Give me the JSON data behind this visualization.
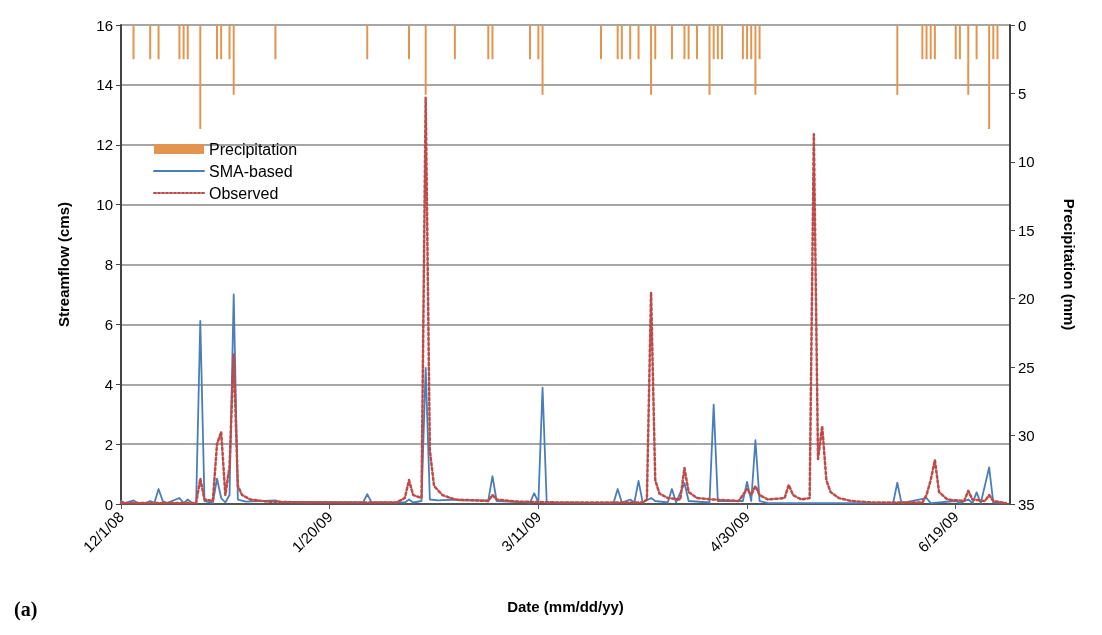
{
  "chart_data": {
    "type": "line",
    "xlabel": "Date (mm/dd/yy)",
    "ylabel": "Streamflow (cms)",
    "y2label": "Precipitation (mm)",
    "annotations": [
      "(a)"
    ],
    "xlim": [
      "2008-12-01",
      "2009-07-02"
    ],
    "xticks": [
      {
        "value": "2008-12-01",
        "label": "12/1/08"
      },
      {
        "value": "2009-01-20",
        "label": "1/20/09"
      },
      {
        "value": "2009-03-11",
        "label": "3/11/09"
      },
      {
        "value": "2009-04-30",
        "label": "4/30/09"
      },
      {
        "value": "2009-06-19",
        "label": "6/19/09"
      }
    ],
    "ylim": [
      0,
      16
    ],
    "yticks": [
      0,
      2,
      4,
      6,
      8,
      10,
      12,
      14,
      16
    ],
    "y2lim": [
      35,
      0
    ],
    "y2ticks": [
      0,
      5,
      10,
      15,
      20,
      25,
      30,
      35
    ],
    "grid": "y",
    "legend": "top left",
    "marker": "none",
    "series": [
      {
        "name": "Precipitation",
        "type": "bar",
        "axis": "y2",
        "color": "#e3954f",
        "x": [
          "2008-12-04",
          "2008-12-08",
          "2008-12-10",
          "2008-12-15",
          "2008-12-16",
          "2008-12-17",
          "2008-12-20",
          "2008-12-24",
          "2008-12-25",
          "2008-12-27",
          "2008-12-28",
          "2009-01-07",
          "2009-01-29",
          "2009-02-08",
          "2009-02-12",
          "2009-02-19",
          "2009-02-27",
          "2009-02-28",
          "2009-03-09",
          "2009-03-11",
          "2009-03-12",
          "2009-03-26",
          "2009-03-30",
          "2009-03-31",
          "2009-04-02",
          "2009-04-04",
          "2009-04-07",
          "2009-04-08",
          "2009-04-12",
          "2009-04-15",
          "2009-04-16",
          "2009-04-18",
          "2009-04-21",
          "2009-04-22",
          "2009-04-23",
          "2009-04-24",
          "2009-04-29",
          "2009-04-30",
          "2009-05-01",
          "2009-05-02",
          "2009-05-03",
          "2009-06-05",
          "2009-06-11",
          "2009-06-12",
          "2009-06-13",
          "2009-06-14",
          "2009-06-19",
          "2009-06-20",
          "2009-06-22",
          "2009-06-24",
          "2009-06-27",
          "2009-06-28",
          "2009-06-29"
        ],
        "values": [
          2.5,
          2.5,
          2.5,
          2.5,
          2.5,
          2.5,
          7.6,
          2.5,
          2.5,
          2.5,
          5.1,
          2.5,
          2.5,
          2.5,
          5.1,
          2.5,
          2.5,
          2.5,
          2.5,
          2.5,
          5.1,
          2.5,
          2.5,
          2.5,
          2.5,
          2.5,
          5.1,
          2.5,
          2.5,
          2.5,
          2.5,
          2.5,
          5.1,
          2.5,
          2.5,
          2.5,
          2.5,
          2.5,
          2.5,
          5.1,
          2.5,
          5.1,
          2.5,
          2.5,
          2.5,
          2.5,
          2.5,
          2.5,
          5.1,
          2.5,
          7.6,
          2.5,
          2.5
        ]
      },
      {
        "name": "SMA-based",
        "color": "#4a7ebb",
        "line_style": "solid",
        "x": [
          "2008-12-01",
          "2008-12-02",
          "2008-12-04",
          "2008-12-05",
          "2008-12-07",
          "2008-12-08",
          "2008-12-09",
          "2008-12-10",
          "2008-12-11",
          "2008-12-12",
          "2008-12-15",
          "2008-12-16",
          "2008-12-17",
          "2008-12-18",
          "2008-12-19",
          "2008-12-20",
          "2008-12-21",
          "2008-12-23",
          "2008-12-24",
          "2008-12-25",
          "2008-12-26",
          "2008-12-27",
          "2008-12-28",
          "2008-12-29",
          "2008-12-31",
          "2009-01-07",
          "2009-01-08",
          "2009-01-28",
          "2009-01-29",
          "2009-01-30",
          "2009-02-07",
          "2009-02-08",
          "2009-02-09",
          "2009-02-11",
          "2009-02-12",
          "2009-02-13",
          "2009-02-15",
          "2009-02-19",
          "2009-02-20",
          "2009-02-27",
          "2009-02-28",
          "2009-03-01",
          "2009-03-09",
          "2009-03-10",
          "2009-03-11",
          "2009-03-12",
          "2009-03-13",
          "2009-03-29",
          "2009-03-30",
          "2009-03-31",
          "2009-04-02",
          "2009-04-03",
          "2009-04-04",
          "2009-04-05",
          "2009-04-07",
          "2009-04-08",
          "2009-04-11",
          "2009-04-12",
          "2009-04-13",
          "2009-04-15",
          "2009-04-16",
          "2009-04-21",
          "2009-04-22",
          "2009-04-23",
          "2009-04-29",
          "2009-04-30",
          "2009-05-01",
          "2009-05-02",
          "2009-05-03",
          "2009-05-05",
          "2009-06-04",
          "2009-06-05",
          "2009-06-06",
          "2009-06-12",
          "2009-06-13",
          "2009-06-19",
          "2009-06-20",
          "2009-06-22",
          "2009-06-23",
          "2009-06-24",
          "2009-06-25",
          "2009-06-27",
          "2009-06-28",
          "2009-07-01"
        ],
        "values": [
          0.1,
          0.03,
          0.12,
          0.03,
          0.03,
          0.1,
          0.03,
          0.5,
          0.1,
          0.03,
          0.2,
          0.03,
          0.15,
          0.03,
          0.03,
          6.12,
          0.1,
          0.03,
          0.85,
          0.2,
          0.05,
          0.3,
          7.0,
          0.15,
          0.08,
          0.12,
          0.08,
          0.05,
          0.33,
          0.06,
          0.05,
          0.15,
          0.05,
          0.1,
          4.55,
          0.15,
          0.12,
          0.15,
          0.12,
          0.12,
          0.93,
          0.1,
          0.05,
          0.36,
          0.05,
          3.89,
          0.05,
          0.03,
          0.5,
          0.05,
          0.15,
          0.05,
          0.77,
          0.05,
          0.2,
          0.1,
          0.05,
          0.5,
          0.05,
          0.7,
          0.1,
          0.05,
          3.32,
          0.1,
          0.1,
          0.74,
          0.1,
          2.13,
          0.1,
          0.03,
          0.03,
          0.71,
          0.03,
          0.2,
          0.03,
          0.1,
          0.03,
          0.15,
          0.03,
          0.39,
          0.03,
          1.22,
          0.05,
          0.03
        ]
      },
      {
        "name": "Observed",
        "color": "#be4b48",
        "line_style": "dotted",
        "x": [
          "2008-12-01",
          "2008-12-19",
          "2008-12-20",
          "2008-12-21",
          "2008-12-23",
          "2008-12-24",
          "2008-12-25",
          "2008-12-26",
          "2008-12-27",
          "2008-12-28",
          "2008-12-29",
          "2008-12-30",
          "2009-01-01",
          "2009-01-05",
          "2009-01-15",
          "2009-02-05",
          "2009-02-07",
          "2009-02-08",
          "2009-02-09",
          "2009-02-11",
          "2009-02-12",
          "2009-02-13",
          "2009-02-14",
          "2009-02-16",
          "2009-02-19",
          "2009-02-27",
          "2009-02-28",
          "2009-03-01",
          "2009-03-06",
          "2009-03-16",
          "2009-04-05",
          "2009-04-06",
          "2009-04-07",
          "2009-04-08",
          "2009-04-09",
          "2009-04-11",
          "2009-04-14",
          "2009-04-15",
          "2009-04-16",
          "2009-04-18",
          "2009-04-22",
          "2009-04-28",
          "2009-04-29",
          "2009-04-30",
          "2009-05-01",
          "2009-05-02",
          "2009-05-03",
          "2009-05-05",
          "2009-05-09",
          "2009-05-10",
          "2009-05-11",
          "2009-05-13",
          "2009-05-15",
          "2009-05-16",
          "2009-05-17",
          "2009-05-18",
          "2009-05-19",
          "2009-05-20",
          "2009-05-22",
          "2009-05-25",
          "2009-05-30",
          "2009-06-11",
          "2009-06-12",
          "2009-06-13",
          "2009-06-14",
          "2009-06-15",
          "2009-06-17",
          "2009-06-21",
          "2009-06-22",
          "2009-06-23",
          "2009-06-26",
          "2009-06-27",
          "2009-06-28",
          "2009-07-01"
        ],
        "values": [
          0.03,
          0.03,
          0.84,
          0.15,
          0.1,
          2.0,
          2.41,
          0.3,
          1.25,
          5.02,
          0.6,
          0.3,
          0.15,
          0.08,
          0.05,
          0.05,
          0.2,
          0.8,
          0.3,
          0.2,
          13.57,
          1.8,
          0.6,
          0.3,
          0.15,
          0.1,
          0.3,
          0.15,
          0.08,
          0.05,
          0.05,
          0.15,
          7.07,
          0.8,
          0.35,
          0.2,
          0.15,
          1.2,
          0.4,
          0.2,
          0.15,
          0.1,
          0.3,
          0.5,
          0.3,
          0.6,
          0.3,
          0.15,
          0.2,
          0.64,
          0.3,
          0.15,
          0.2,
          12.35,
          1.5,
          2.6,
          0.8,
          0.4,
          0.2,
          0.1,
          0.05,
          0.05,
          0.3,
          0.8,
          1.47,
          0.4,
          0.15,
          0.1,
          0.44,
          0.15,
          0.1,
          0.3,
          0.1,
          0.03
        ]
      }
    ]
  }
}
